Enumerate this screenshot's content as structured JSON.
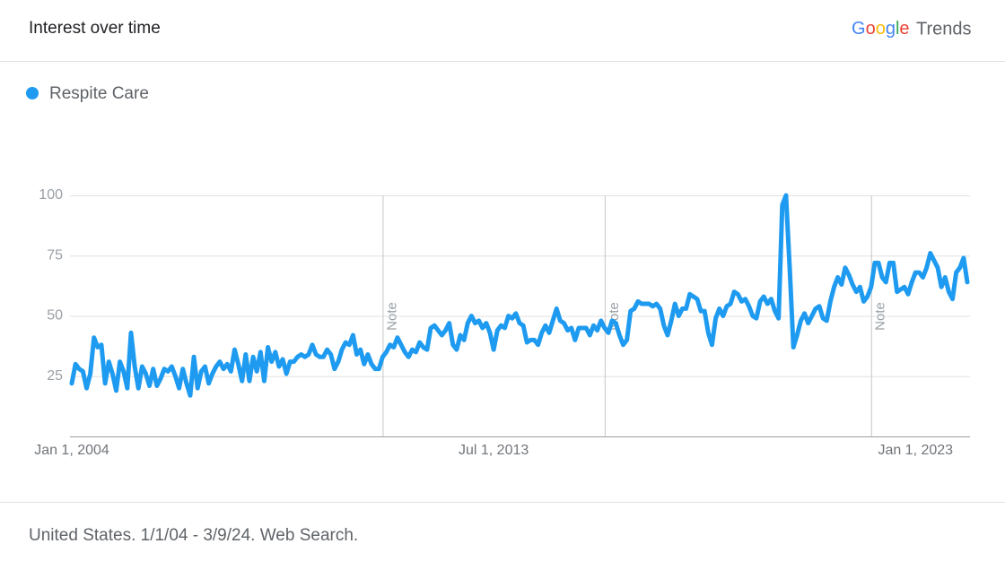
{
  "header": {
    "title": "Interest over time",
    "logo_brand": "Google",
    "logo_product": "Trends"
  },
  "chart_data": {
    "type": "line",
    "categories": [
      "Jan 1, 2004",
      null,
      null,
      null,
      null,
      null,
      null,
      null,
      null,
      null,
      null,
      null,
      null,
      null,
      null,
      null,
      null,
      null,
      null,
      null,
      null,
      null,
      null,
      null,
      null,
      null,
      null,
      null,
      null,
      null,
      null,
      null,
      null,
      null,
      null,
      null,
      null,
      null,
      null,
      null,
      null,
      null,
      null,
      null,
      null,
      null,
      null,
      null,
      null,
      null,
      null,
      null,
      null,
      null,
      null,
      null,
      null,
      null,
      null,
      null,
      null,
      null,
      null,
      null,
      null,
      null,
      null,
      null,
      null,
      null,
      null,
      null,
      null,
      null,
      null,
      null,
      null,
      null,
      null,
      null,
      null,
      null,
      null,
      null,
      null,
      null,
      null,
      null,
      null,
      null,
      null,
      null,
      null,
      null,
      null,
      null,
      null,
      null,
      null,
      null,
      null,
      null,
      null,
      null,
      null,
      null,
      null,
      null,
      null,
      null,
      null,
      null,
      null,
      null,
      "Jul 1, 2013",
      null,
      null,
      null,
      null,
      null,
      null,
      null,
      null,
      null,
      null,
      null,
      null,
      null,
      null,
      null,
      null,
      null,
      null,
      null,
      null,
      null,
      null,
      null,
      null,
      null,
      null,
      null,
      null,
      null,
      null,
      null,
      null,
      null,
      null,
      null,
      null,
      null,
      null,
      null,
      null,
      null,
      null,
      null,
      null,
      null,
      null,
      null,
      null,
      null,
      null,
      null,
      null,
      null,
      null,
      null,
      null,
      null,
      null,
      null,
      null,
      null,
      null,
      null,
      null,
      null,
      null,
      null,
      null,
      null,
      null,
      null,
      null,
      null,
      null,
      null,
      null,
      null,
      null,
      null,
      null,
      null,
      null,
      null,
      null,
      null,
      null,
      null,
      null,
      null,
      null,
      null,
      null,
      null,
      null,
      null,
      null,
      null,
      null,
      null,
      null,
      null,
      null,
      null,
      null,
      null,
      null,
      null,
      null,
      null,
      null,
      null,
      null,
      null,
      "Jan 1, 2023",
      null,
      null,
      null,
      null,
      null,
      null,
      null,
      null,
      null,
      null,
      null,
      null,
      null,
      null
    ],
    "series": [
      {
        "name": "Respite Care",
        "color": "#1e9bf0",
        "values": [
          22,
          30,
          28,
          27,
          20,
          26,
          41,
          37,
          38,
          22,
          31,
          26,
          19,
          31,
          27,
          20,
          43,
          29,
          20,
          29,
          26,
          21,
          28,
          21,
          24,
          28,
          27,
          29,
          25,
          20,
          28,
          22,
          17,
          33,
          20,
          27,
          29,
          22,
          26,
          29,
          31,
          28,
          30,
          27,
          36,
          30,
          23,
          34,
          23,
          33,
          27,
          35,
          23,
          37,
          31,
          35,
          29,
          32,
          26,
          31,
          31,
          33,
          34,
          33,
          34,
          38,
          34,
          33,
          33,
          36,
          34,
          28,
          31,
          36,
          39,
          38,
          42,
          34,
          36,
          30,
          34,
          30,
          28,
          28,
          33,
          35,
          38,
          37,
          41,
          38,
          35,
          33,
          36,
          35,
          39,
          37,
          36,
          45,
          46,
          44,
          42,
          44,
          47,
          38,
          36,
          42,
          40,
          47,
          50,
          47,
          48,
          45,
          47,
          43,
          36,
          44,
          46,
          45,
          50,
          49,
          51,
          47,
          46,
          39,
          40,
          40,
          38,
          43,
          46,
          43,
          48,
          53,
          48,
          47,
          44,
          45,
          40,
          45,
          45,
          45,
          42,
          46,
          44,
          48,
          45,
          43,
          48,
          47,
          42,
          38,
          40,
          52,
          53,
          56,
          55,
          55,
          55,
          54,
          55,
          53,
          46,
          42,
          48,
          55,
          50,
          53,
          53,
          59,
          58,
          57,
          52,
          52,
          43,
          38,
          49,
          53,
          50,
          54,
          55,
          60,
          59,
          56,
          57,
          54,
          50,
          49,
          56,
          58,
          55,
          57,
          52,
          49,
          96,
          100,
          70,
          37,
          42,
          48,
          51,
          47,
          50,
          53,
          54,
          49,
          48,
          56,
          62,
          66,
          63,
          70,
          67,
          63,
          60,
          62,
          56,
          58,
          62,
          72,
          72,
          66,
          64,
          72,
          72,
          60,
          61,
          62,
          59,
          64,
          68,
          68,
          66,
          70,
          76,
          73,
          70,
          62,
          66,
          60,
          57,
          68,
          70,
          74,
          64
        ]
      }
    ],
    "ylim": [
      0,
      100
    ],
    "yticks": [
      25,
      50,
      75,
      100
    ],
    "grid": true,
    "annotations": [
      {
        "text": "Note",
        "x": 84
      },
      {
        "text": "Note",
        "x": 144
      },
      {
        "text": "Note",
        "x": 216
      }
    ]
  },
  "footer": {
    "text": "United States. 1/1/04 - 3/9/24. Web Search."
  }
}
